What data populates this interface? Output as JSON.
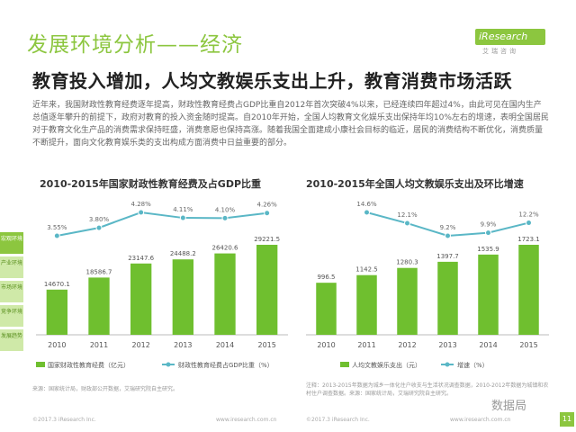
{
  "section_title": "发展环境分析——经济",
  "logo": {
    "word": "iResearch",
    "sub": "艾瑞咨询"
  },
  "headline": "教育投入增加，人均文教娱乐支出上升，教育消费市场活跃",
  "body_text": "近年来，我国财政性教育经费逐年提高，财政性教育经费占GDP比重自2012年首次突破4%以来，已经连续四年超过4%，由此可见在国内生产总值逐年攀升的前提下，政府对教育的投入资金随时提高。自2010年开始，全国人均教育文化娱乐支出保持年均10%左右的增速，表明全国居民对于教育文化生产品的消费需求保持旺盛，消费意愿也保持高涨。随着我国全面建成小康社会目标的临近，居民的消费结构不断优化，消费质量不断提升，面向文化教育娱乐类的支出构成方面消费中日益重要的部分。",
  "side_tabs": [
    {
      "label": "宏观环境"
    },
    {
      "label": "产业环境"
    },
    {
      "label": "市场环境"
    },
    {
      "label": "竞争环境"
    },
    {
      "label": "发展趋势"
    }
  ],
  "colors": {
    "accent": "#8cc63f",
    "bar": "#6fbf2f",
    "line": "#5ab7c6"
  },
  "chart_data": [
    {
      "type": "bar",
      "title": "2010-2015年国家财政性教育经费及占GDP比重",
      "categories": [
        "2010",
        "2011",
        "2012",
        "2013",
        "2014",
        "2015"
      ],
      "series": [
        {
          "name": "国家财政性教育经费（亿元）",
          "kind": "bar",
          "values": [
            14670.1,
            18586.7,
            23147.6,
            24488.2,
            26420.6,
            29221.5
          ],
          "labels": [
            "14670.1",
            "18586.7",
            "23147.6",
            "24488.2",
            "26420.6",
            "29221.5"
          ]
        },
        {
          "name": "财政性教育经费占GDP比重（%）",
          "kind": "line",
          "values": [
            3.55,
            3.8,
            4.28,
            4.11,
            4.1,
            4.26
          ],
          "labels": [
            "3.55%",
            "3.80%",
            "4.28%",
            "4.11%",
            "4.10%",
            "4.26%"
          ]
        }
      ],
      "note": "来源：国家统计局，财政部公开数据，艾瑞研究院自主研究。",
      "source_footer": "©2017.3 iResearch Inc.",
      "url_footer": "www.iresearch.com.cn"
    },
    {
      "type": "bar",
      "title": "2010-2015年全国人均文教娱乐支出及环比增速",
      "categories": [
        "2010",
        "2011",
        "2012",
        "2013",
        "2014",
        "2015"
      ],
      "series": [
        {
          "name": "人均文教娱乐支出（元）",
          "kind": "bar",
          "values": [
            996.5,
            1142.5,
            1280.3,
            1397.7,
            1535.9,
            1723.1
          ],
          "labels": [
            "996.5",
            "1142.5",
            "1280.3",
            "1397.7",
            "1535.9",
            "1723.1"
          ]
        },
        {
          "name": "增速（%）",
          "kind": "line",
          "values": [
            null,
            14.6,
            12.1,
            9.2,
            9.9,
            12.2
          ],
          "labels": [
            "",
            "14.6%",
            "12.1%",
            "9.2%",
            "9.9%",
            "12.2%"
          ]
        }
      ],
      "note": "注释：2013-2015年数据为城乡一体化住户收支与生活状况调查数据，2010-2012年数据为城镇和农村住户调查数据。来源：国家统计局，艾瑞研究院自主研究。",
      "source_footer": "©2017.3 iResearch Inc.",
      "url_footer": "www.iresearch.com.cn"
    }
  ],
  "watermark": "数据局",
  "page_number": "11"
}
